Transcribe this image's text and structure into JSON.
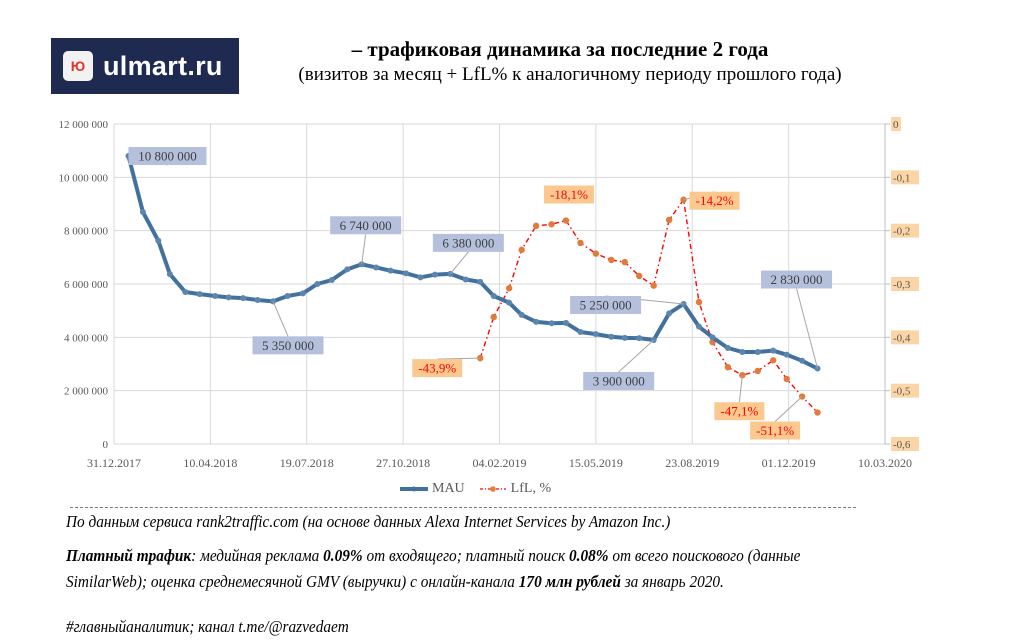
{
  "header": {
    "logo_icon_text": "Ю",
    "logo_text": "ulmart.ru",
    "title": "– трафиковая динамика за последние 2 года",
    "subtitle": "(визитов за месяц + LfL% к аналогичному периоду прошлого года)"
  },
  "chart_data": {
    "type": "line",
    "title": "",
    "x_start_date": "31.12.2017",
    "x_unit": "days since 31.12.2017",
    "xlim": [
      0,
      800
    ],
    "x_ticks": [
      {
        "day": 0,
        "label": "31.12.2017"
      },
      {
        "day": 100,
        "label": "10.04.2018"
      },
      {
        "day": 200,
        "label": "19.07.2018"
      },
      {
        "day": 300,
        "label": "27.10.2018"
      },
      {
        "day": 400,
        "label": "04.02.2019"
      },
      {
        "day": 500,
        "label": "15.05.2019"
      },
      {
        "day": 600,
        "label": "23.08.2019"
      },
      {
        "day": 700,
        "label": "01.12.2019"
      },
      {
        "day": 800,
        "label": "10.03.2020"
      }
    ],
    "y_left": {
      "lim": [
        0,
        12000000
      ],
      "ticks": [
        0,
        2000000,
        4000000,
        6000000,
        8000000,
        10000000,
        12000000
      ],
      "tick_labels": [
        "0",
        "2 000 000",
        "4 000 000",
        "6 000 000",
        "8 000 000",
        "10 000 000",
        "12 000 000"
      ]
    },
    "y_right": {
      "lim": [
        -0.6,
        0
      ],
      "ticks": [
        0,
        -0.1,
        -0.2,
        -0.3,
        -0.4,
        -0.5,
        -0.6
      ],
      "tick_labels": [
        "0",
        "-0,1",
        "-0,2",
        "-0,3",
        "-0,4",
        "-0,5",
        "-0,6"
      ]
    },
    "grid": true,
    "legend_position": "bottom",
    "series": [
      {
        "name": "MAU",
        "axis": "left",
        "color": "#41719c",
        "x": [
          15,
          30,
          46,
          58,
          74,
          89,
          105,
          119,
          134,
          149,
          165,
          180,
          196,
          211,
          226,
          242,
          257,
          272,
          287,
          303,
          318,
          333,
          349,
          365,
          380,
          394,
          410,
          423,
          438,
          454,
          469,
          484,
          500,
          516,
          530,
          545,
          560,
          576,
          591,
          607,
          621,
          637,
          652,
          668,
          684,
          698,
          714,
          730
        ],
        "values": [
          10800000,
          8700000,
          7620000,
          6370000,
          5700000,
          5620000,
          5550000,
          5500000,
          5470000,
          5400000,
          5350000,
          5550000,
          5650000,
          6000000,
          6150000,
          6550000,
          6740000,
          6620000,
          6500000,
          6400000,
          6250000,
          6350000,
          6380000,
          6170000,
          6080000,
          5550000,
          5300000,
          4840000,
          4580000,
          4530000,
          4540000,
          4200000,
          4120000,
          4020000,
          3980000,
          3970000,
          3900000,
          4900000,
          5250000,
          4400000,
          4000000,
          3600000,
          3450000,
          3450000,
          3500000,
          3350000,
          3120000,
          2830000
        ],
        "data_labels": [
          {
            "index": 0,
            "text": "10 800 000"
          },
          {
            "index": 10,
            "text": "5 350 000"
          },
          {
            "index": 16,
            "text": "6 740 000"
          },
          {
            "index": 22,
            "text": "6 380 000"
          },
          {
            "index": 36,
            "text": "3 900 000"
          },
          {
            "index": 38,
            "text": "5 250 000"
          },
          {
            "index": 47,
            "text": "2 830 000"
          }
        ]
      },
      {
        "name": "LfL, %",
        "axis": "right",
        "color": "#ed7d31",
        "x": [
          380,
          394,
          410,
          423,
          438,
          454,
          469,
          484,
          500,
          516,
          530,
          545,
          560,
          576,
          591,
          607,
          621,
          637,
          652,
          668,
          684,
          698,
          714,
          730
        ],
        "values": [
          -0.439,
          -0.362,
          -0.308,
          -0.236,
          -0.191,
          -0.188,
          -0.181,
          -0.223,
          -0.243,
          -0.255,
          -0.259,
          -0.285,
          -0.303,
          -0.18,
          -0.142,
          -0.334,
          -0.409,
          -0.456,
          -0.471,
          -0.463,
          -0.443,
          -0.478,
          -0.511,
          -0.541
        ],
        "data_labels": [
          {
            "index": 0,
            "text": "-43,9%"
          },
          {
            "index": 6,
            "text": "-18,1%"
          },
          {
            "index": 14,
            "text": "-14,2%"
          },
          {
            "index": 18,
            "text": "-47,1%"
          },
          {
            "index": 22,
            "text": "-51,1%"
          }
        ]
      }
    ]
  },
  "footer": {
    "source": "По данным сервиса rank2traffic.com (на основе данных Alexa Internet Services by Amazon Inc.)",
    "paid_title": "Платный трафик",
    "paid_1": ": медийная реклама ",
    "paid_v1": "0.09%",
    "paid_2": " от входящего; платный поиск ",
    "paid_v2": "0.08%",
    "paid_3": " от всего поискового (данные",
    "paid_4": "SimilarWeb); оценка среднемесячной GMV (выручки) с онлайн-канала ",
    "paid_v3": "170 млн рублей",
    "paid_5": " за январь 2020.",
    "hashtag": "#главныйаналитик; канал t.me/@razvedaem"
  }
}
